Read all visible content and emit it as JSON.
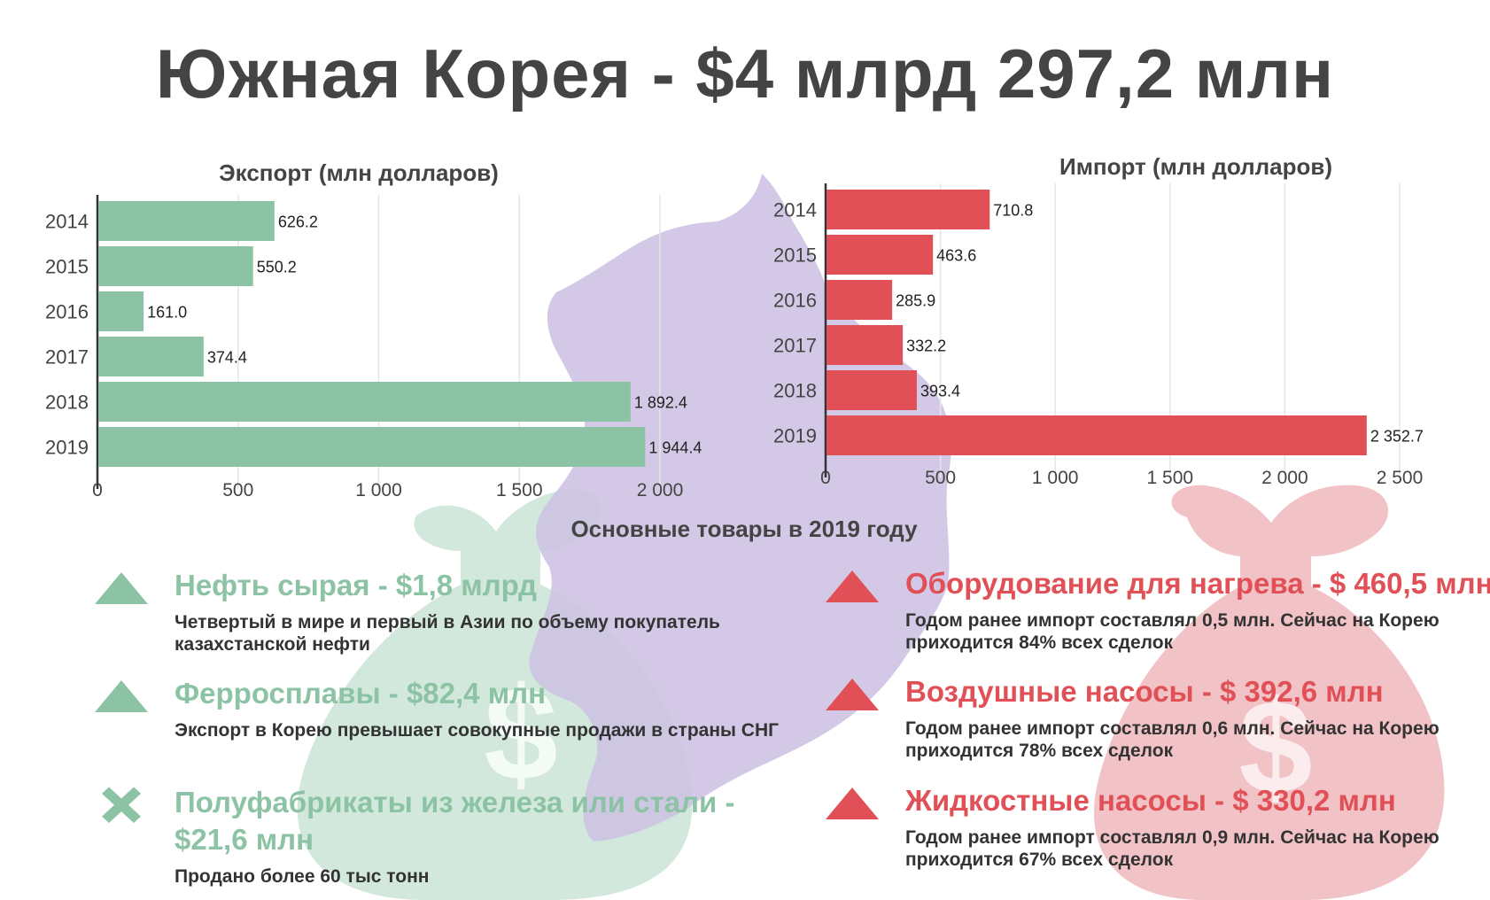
{
  "title": "Южная Корея - $4 млрд 297,2 млн",
  "colors": {
    "export": "#8cc3a4",
    "import": "#e05056",
    "map": "#cdc1e2",
    "export_bag": "#d3e8dc",
    "import_bag": "#f2c3c6",
    "grid": "#e6e6e6",
    "text": "#444444"
  },
  "icons": [
    "kazakhstan-map-icon",
    "money-bag-icon",
    "money-bag-icon",
    "triangle-up-icon",
    "close-x-icon"
  ],
  "chart_data": [
    {
      "type": "bar",
      "orientation": "horizontal",
      "title": "Экспорт (млн долларов)",
      "categories": [
        "2014",
        "2015",
        "2016",
        "2017",
        "2018",
        "2019"
      ],
      "values": [
        626.2,
        550.2,
        161.0,
        374.4,
        1892.4,
        1944.4
      ],
      "value_labels": [
        "626.2",
        "550.2",
        "161.0",
        "374.4",
        "1 892.4",
        "1 944.4"
      ],
      "ticks": [
        0,
        500,
        1000,
        1500,
        2000
      ],
      "tick_labels": [
        "0",
        "500",
        "1 000",
        "1 500",
        "2 000"
      ],
      "xlim": [
        0,
        2000
      ],
      "grid": true,
      "color": "#8cc3a4"
    },
    {
      "type": "bar",
      "orientation": "horizontal",
      "title": "Импорт (млн долларов)",
      "categories": [
        "2014",
        "2015",
        "2016",
        "2017",
        "2018",
        "2019"
      ],
      "values": [
        710.8,
        463.6,
        285.9,
        332.2,
        393.4,
        2352.7
      ],
      "value_labels": [
        "710.8",
        "463.6",
        "285.9",
        "332.2",
        "393.4",
        "2 352.7"
      ],
      "ticks": [
        0,
        500,
        1000,
        1500,
        2000,
        2500
      ],
      "tick_labels": [
        "0",
        "500",
        "1 000",
        "1 500",
        "2 000",
        "2 500"
      ],
      "xlim": [
        0,
        2500
      ],
      "grid": true,
      "color": "#e05056"
    }
  ],
  "goods": {
    "title": "Основные товары в 2019 году",
    "export": [
      {
        "marker": "triangle-up-icon",
        "title": "Нефть сырая - $1,8 млрд",
        "desc": "Четвертый в мире и первый в Азии по объему покупатель казахстанской нефти"
      },
      {
        "marker": "triangle-up-icon",
        "title": "Ферросплавы - $82,4 млн",
        "desc": "Экспорт в Корею превышает совокупные продажи в страны СНГ"
      },
      {
        "marker": "close-x-icon",
        "title": "Полуфабрикаты из железа или стали - $21,6 млн",
        "desc": "Продано более 60 тыс тонн"
      }
    ],
    "import": [
      {
        "marker": "triangle-up-icon",
        "title": "Оборудование для нагрева - $ 460,5 млн",
        "desc": "Годом ранее импорт составлял 0,5 млн. Сейчас на Корею приходится 84% всех сделок"
      },
      {
        "marker": "triangle-up-icon",
        "title": "Воздушные насосы - $ 392,6 млн",
        "desc": "Годом ранее импорт составлял 0,6 млн. Сейчас на Корею приходится 78% всех сделок"
      },
      {
        "marker": "triangle-up-icon",
        "title": "Жидкостные насосы - $ 330,2 млн",
        "desc": "Годом ранее импорт составлял 0,9 млн. Сейчас на Корею приходится 67% всех сделок"
      }
    ]
  }
}
